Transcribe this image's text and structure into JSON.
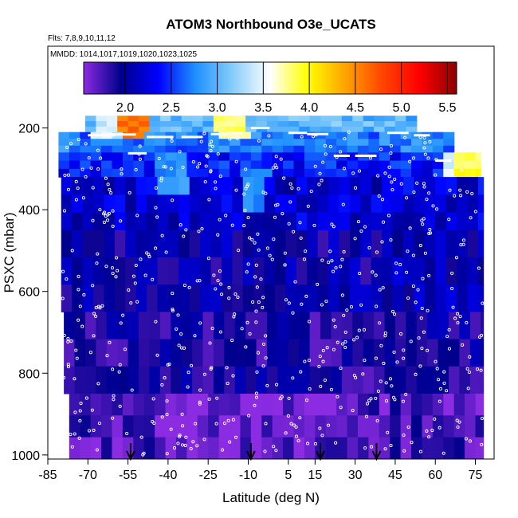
{
  "chart_data": {
    "type": "heatmap",
    "title": "ATOM3 Northbound O3e_UCATS",
    "subtitle_flights": "Flts: 7,8,9,10,11,12",
    "subtitle_dates": "MMDD: 1014,1017,1019,1020,1023,1025",
    "xlabel": "Latitude (deg N)",
    "ylabel": "PSXC (mbar)",
    "xlim": [
      -85,
      82
    ],
    "ylim": [
      1010,
      0
    ],
    "x_ticks": [
      -85,
      -70,
      -55,
      -40,
      -25,
      -10,
      5,
      15,
      30,
      45,
      60,
      75
    ],
    "y_ticks": [
      200,
      400,
      600,
      800,
      1000
    ],
    "colorbar": {
      "min": 1.55,
      "max": 5.6,
      "ticks": [
        2.0,
        2.5,
        3.0,
        3.5,
        4.0,
        4.5,
        5.0,
        5.5
      ],
      "colors": [
        "#8b2be2",
        "#00008b",
        "#0000ff",
        "#1e90ff",
        "#87cefa",
        "#ffffff",
        "#ffff00",
        "#ffa500",
        "#ff4500",
        "#ff0000",
        "#8b0000"
      ]
    },
    "arrows_latitude": [
      -54,
      -9,
      17,
      38
    ],
    "bands": [
      {
        "p_top": 170,
        "p_bot": 210,
        "x_start": -71,
        "x_end": 53,
        "value": 3.0
      },
      {
        "p_top": 210,
        "p_bot": 260,
        "x_start": -81,
        "x_end": 67,
        "value": 2.7
      },
      {
        "p_top": 260,
        "p_bot": 320,
        "x_start": -81,
        "x_end": 77,
        "value": 2.4
      },
      {
        "p_top": 320,
        "p_bot": 450,
        "x_start": -80,
        "x_end": 78,
        "value": 2.2
      },
      {
        "p_top": 450,
        "p_bot": 650,
        "x_start": -80,
        "x_end": 78,
        "value": 2.0
      },
      {
        "p_top": 650,
        "p_bot": 850,
        "x_start": -79,
        "x_end": 78,
        "value": 1.9
      },
      {
        "p_top": 850,
        "p_bot": 1010,
        "x_start": -77,
        "x_end": 78,
        "value": 1.75
      }
    ],
    "highlights": [
      {
        "lat": -55,
        "p_top": 170,
        "p_bot": 215,
        "value": 4.6
      },
      {
        "lat": -65,
        "p_top": 175,
        "p_bot": 210,
        "value": 3.4
      },
      {
        "lat": -18,
        "p_top": 170,
        "p_bot": 210,
        "value": 3.8
      },
      {
        "lat": 65,
        "p_top": 260,
        "p_bot": 300,
        "value": 3.5
      },
      {
        "lat": 72,
        "p_top": 260,
        "p_bot": 300,
        "value": 3.9
      },
      {
        "lat": -40,
        "p_top": 260,
        "p_bot": 330,
        "value": 2.8
      },
      {
        "lat": -10,
        "p_top": 300,
        "p_bot": 380,
        "value": 2.7
      }
    ]
  }
}
